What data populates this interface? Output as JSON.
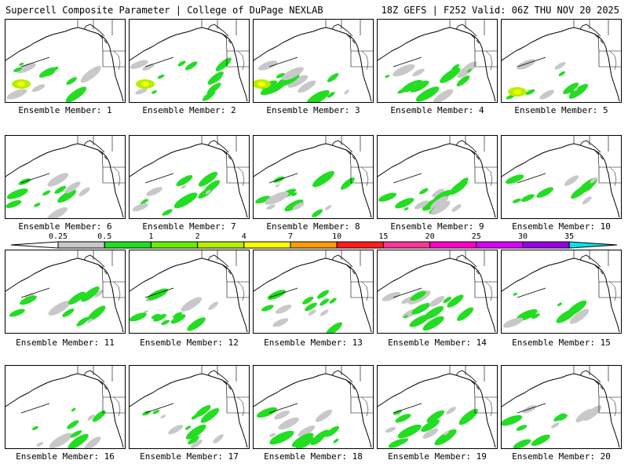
{
  "header": {
    "left_title": "Supercell Composite Parameter | College of DuPage NEXLAB",
    "right_title": "18Z GEFS | F252 Valid: 06Z THU NOV 20 2025"
  },
  "legend": {
    "ticks": [
      "0.25",
      "0.5",
      "1",
      "2",
      "4",
      "7",
      "10",
      "15",
      "20",
      "25",
      "30",
      "35"
    ],
    "colors": [
      "#c8c8c8",
      "#22dd22",
      "#66f000",
      "#b4f000",
      "#ffff00",
      "#ff9c00",
      "#ff1c1c",
      "#ff3296",
      "#ff00c8",
      "#dc00ff",
      "#9600e6",
      "#7878ff",
      "#00e6e6"
    ]
  },
  "members": [
    {
      "label": "Ensemble Member: 1"
    },
    {
      "label": "Ensemble Member: 2"
    },
    {
      "label": "Ensemble Member: 3"
    },
    {
      "label": "Ensemble Member: 4"
    },
    {
      "label": "Ensemble Member: 5"
    },
    {
      "label": "Ensemble Member: 6"
    },
    {
      "label": "Ensemble Member: 7"
    },
    {
      "label": "Ensemble Member: 8"
    },
    {
      "label": "Ensemble Member: 9"
    },
    {
      "label": "Ensemble Member: 10"
    },
    {
      "label": "Ensemble Member: 11"
    },
    {
      "label": "Ensemble Member: 12"
    },
    {
      "label": "Ensemble Member: 13"
    },
    {
      "label": "Ensemble Member: 14"
    },
    {
      "label": "Ensemble Member: 15"
    },
    {
      "label": "Ensemble Member: 16"
    },
    {
      "label": "Ensemble Member: 17"
    },
    {
      "label": "Ensemble Member: 18"
    },
    {
      "label": "Ensemble Member: 19"
    },
    {
      "label": "Ensemble Member: 20"
    }
  ]
}
